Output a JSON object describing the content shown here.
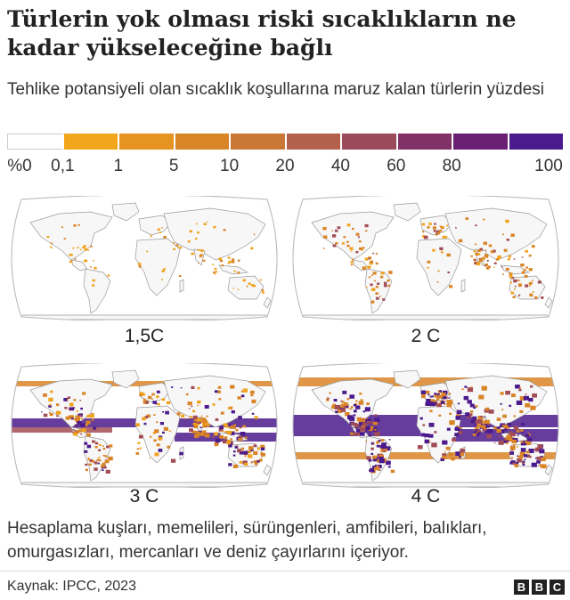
{
  "title": "Türlerin yok olması riski sıcaklıkların ne kadar yükseleceğine bağlı",
  "subtitle": "Tehlike potansiyeli olan sıcaklık koşullarına maruz kalan türlerin yüzdesi",
  "legend": {
    "labels": [
      "%0",
      "0,1",
      "1",
      "5",
      "10",
      "20",
      "40",
      "60",
      "80",
      "100"
    ],
    "colors": [
      "#ffffff",
      "#f1a61c",
      "#e69322",
      "#d98426",
      "#c97836",
      "#b3604c",
      "#9b4a5b",
      "#823166",
      "#6a1f75",
      "#4b1a8c"
    ]
  },
  "maps": [
    {
      "label": "1,5C",
      "level": 1
    },
    {
      "label": "2 C",
      "level": 2
    },
    {
      "label": "3 C",
      "level": 3
    },
    {
      "label": "4 C",
      "level": 4
    }
  ],
  "colors": {
    "land": "#f7f7f7",
    "ocean": "#ffffff",
    "outline": "#9a9a9a",
    "low": "#f0a21c",
    "mid": "#d98426",
    "high": "#a24d55",
    "extreme": "#4b1a8c"
  },
  "footnote": "Hesaplama kuşları, memelileri, sürüngenleri, amfibileri, balıkları, omurgasızları, mercanları ve deniz çayırlarını içeriyor.",
  "source": "Kaynak: IPCC, 2023",
  "logo": [
    "B",
    "B",
    "C"
  ]
}
